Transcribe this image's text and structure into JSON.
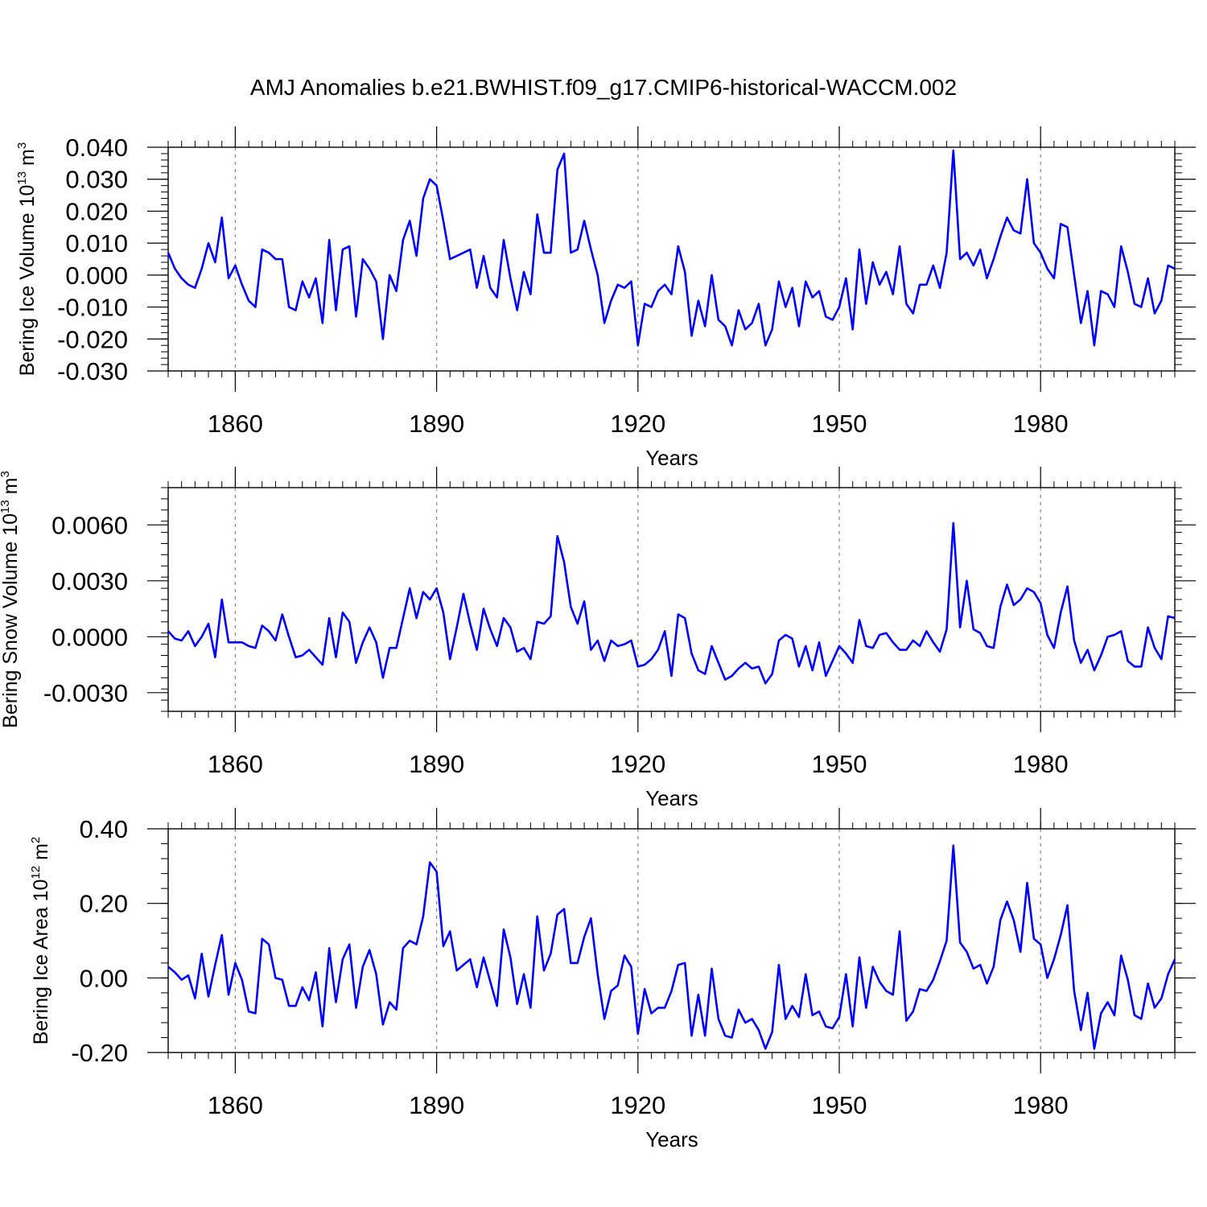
{
  "chart_data": [
    {
      "type": "line",
      "title": "AMJ Anomalies b.e21.BWHIST.f09_g17.CMIP6-historical-WACCM.002",
      "xlabel": "Years",
      "ylabel_main": "Bering Ice Volume 10",
      "ylabel_exp": "13",
      "ylabel_unit": " m",
      "ylabel_unit_exp": "3",
      "xlim": [
        1850,
        2000
      ],
      "ylim": [
        -0.03,
        0.04
      ],
      "xticks": [
        1860,
        1890,
        1920,
        1950,
        1980
      ],
      "xtick_labels": [
        "1860",
        "1890",
        "1920",
        "1950",
        "1980"
      ],
      "yticks": [
        -0.03,
        -0.02,
        -0.01,
        0.0,
        0.01,
        0.02,
        0.03,
        0.04
      ],
      "ytick_labels": [
        "-0.030",
        "-0.020",
        "-0.010",
        "0.000",
        "0.010",
        "0.020",
        "0.030",
        "0.040"
      ],
      "line_color": "#0000ff",
      "x_start": 1850,
      "values": [
        0.007,
        0.002,
        -0.001,
        -0.003,
        -0.004,
        0.002,
        0.01,
        0.004,
        0.018,
        -0.001,
        0.003,
        -0.003,
        -0.008,
        -0.01,
        0.008,
        0.007,
        0.005,
        0.005,
        -0.01,
        -0.011,
        -0.002,
        -0.007,
        -0.001,
        -0.015,
        0.011,
        -0.011,
        0.008,
        0.009,
        -0.013,
        0.005,
        0.002,
        -0.002,
        -0.02,
        0.0,
        -0.005,
        0.011,
        0.017,
        0.006,
        0.024,
        0.03,
        0.028,
        0.017,
        0.005,
        0.006,
        0.007,
        0.008,
        -0.004,
        0.006,
        -0.004,
        -0.007,
        0.011,
        -0.001,
        -0.011,
        0.001,
        -0.006,
        0.019,
        0.007,
        0.007,
        0.033,
        0.038,
        0.007,
        0.008,
        0.017,
        0.008,
        0.0,
        -0.015,
        -0.008,
        -0.003,
        -0.004,
        -0.002,
        -0.022,
        -0.009,
        -0.01,
        -0.005,
        -0.003,
        -0.006,
        0.009,
        0.001,
        -0.019,
        -0.008,
        -0.016,
        0.0,
        -0.014,
        -0.016,
        -0.022,
        -0.011,
        -0.017,
        -0.015,
        -0.009,
        -0.022,
        -0.017,
        -0.002,
        -0.01,
        -0.004,
        -0.016,
        -0.002,
        -0.007,
        -0.005,
        -0.013,
        -0.014,
        -0.01,
        -0.001,
        -0.017,
        0.008,
        -0.009,
        0.004,
        -0.003,
        0.001,
        -0.006,
        0.009,
        -0.009,
        -0.012,
        -0.003,
        -0.003,
        0.003,
        -0.004,
        0.007,
        0.039,
        0.005,
        0.007,
        0.003,
        0.008,
        -0.001,
        0.005,
        0.012,
        0.018,
        0.014,
        0.013,
        0.03,
        0.01,
        0.007,
        0.002,
        -0.001,
        0.016,
        0.015,
        0.0,
        -0.015,
        -0.005,
        -0.022,
        -0.005,
        -0.006,
        -0.01,
        0.009,
        0.001,
        -0.009,
        -0.01,
        -0.001,
        -0.012,
        -0.008,
        0.003,
        0.002
      ]
    },
    {
      "type": "line",
      "xlabel": "Years",
      "ylabel_main": "Bering Snow Volume 10",
      "ylabel_exp": "13",
      "ylabel_unit": " m",
      "ylabel_unit_exp": "3",
      "xlim": [
        1850,
        2000
      ],
      "ylim": [
        -0.004,
        0.008
      ],
      "xticks": [
        1860,
        1890,
        1920,
        1950,
        1980
      ],
      "xtick_labels": [
        "1860",
        "1890",
        "1920",
        "1950",
        "1980"
      ],
      "yticks": [
        -0.003,
        0.0,
        0.003,
        0.006
      ],
      "ytick_labels": [
        "-0.0030",
        "0.0000",
        "0.0030",
        "0.0060"
      ],
      "line_color": "#0000ff",
      "x_start": 1850,
      "values": [
        0.0003,
        -0.0001,
        -0.0002,
        0.0003,
        -0.0005,
        0.0,
        0.0007,
        -0.0011,
        0.002,
        -0.0003,
        -0.0003,
        -0.0003,
        -0.0005,
        -0.0006,
        0.0006,
        0.0003,
        -0.0002,
        0.0012,
        0.0,
        -0.0011,
        -0.001,
        -0.0007,
        -0.0011,
        -0.0015,
        0.001,
        -0.0011,
        0.0013,
        0.0008,
        -0.0014,
        -0.0003,
        0.0005,
        -0.0003,
        -0.0022,
        -0.0006,
        -0.0006,
        0.001,
        0.0026,
        0.001,
        0.0024,
        0.002,
        0.0026,
        0.0013,
        -0.0012,
        0.0005,
        0.0023,
        0.0007,
        -0.0007,
        0.0015,
        0.0004,
        -0.0005,
        0.001,
        0.0005,
        -0.0008,
        -0.0006,
        -0.0012,
        0.0008,
        0.0007,
        0.0011,
        0.0054,
        0.004,
        0.0016,
        0.0007,
        0.0019,
        -0.0007,
        -0.0002,
        -0.0013,
        -0.0002,
        -0.0005,
        -0.0004,
        -0.0002,
        -0.0016,
        -0.0015,
        -0.0012,
        -0.0007,
        0.0003,
        -0.0021,
        0.0012,
        0.001,
        -0.0009,
        -0.0018,
        -0.002,
        -0.0005,
        -0.0014,
        -0.0023,
        -0.0021,
        -0.0017,
        -0.0014,
        -0.0017,
        -0.0016,
        -0.0025,
        -0.002,
        -0.0002,
        0.0001,
        -0.0001,
        -0.0016,
        -0.0005,
        -0.0018,
        -0.0003,
        -0.0021,
        -0.0013,
        -0.0005,
        -0.0009,
        -0.0014,
        0.0009,
        -0.0005,
        -0.0006,
        0.0001,
        0.0002,
        -0.0003,
        -0.0007,
        -0.0007,
        -0.0002,
        -0.0005,
        0.0003,
        -0.0003,
        -0.0008,
        0.0004,
        0.0061,
        0.0005,
        0.003,
        0.0004,
        0.0002,
        -0.0005,
        -0.0006,
        0.0016,
        0.0028,
        0.0017,
        0.002,
        0.0026,
        0.0024,
        0.0018,
        0.0001,
        -0.0006,
        0.0013,
        0.0027,
        -0.0002,
        -0.0014,
        -0.0007,
        -0.0018,
        -0.001,
        0.0,
        0.0001,
        0.0003,
        -0.0013,
        -0.0016,
        -0.0016,
        0.0005,
        -0.0006,
        -0.0012,
        0.0011,
        0.001
      ]
    },
    {
      "type": "line",
      "xlabel": "Years",
      "ylabel_main": "Bering Ice Area 10",
      "ylabel_exp": "12",
      "ylabel_unit": " m",
      "ylabel_unit_exp": "2",
      "xlim": [
        1850,
        2000
      ],
      "ylim": [
        -0.2,
        0.4
      ],
      "xticks": [
        1860,
        1890,
        1920,
        1950,
        1980
      ],
      "xtick_labels": [
        "1860",
        "1890",
        "1920",
        "1950",
        "1980"
      ],
      "yticks": [
        -0.2,
        0.0,
        0.2,
        0.4
      ],
      "ytick_labels": [
        "-0.20",
        "0.00",
        "0.20",
        "0.40"
      ],
      "line_color": "#0000ff",
      "x_start": 1850,
      "values": [
        0.03,
        0.015,
        -0.005,
        0.007,
        -0.055,
        0.065,
        -0.05,
        0.035,
        0.115,
        -0.045,
        0.04,
        -0.005,
        -0.09,
        -0.095,
        0.105,
        0.09,
        0.0,
        -0.005,
        -0.075,
        -0.075,
        -0.025,
        -0.06,
        0.015,
        -0.13,
        0.08,
        -0.065,
        0.05,
        0.09,
        -0.08,
        0.03,
        0.075,
        0.01,
        -0.125,
        -0.065,
        -0.085,
        0.08,
        0.1,
        0.09,
        0.165,
        0.31,
        0.285,
        0.085,
        0.125,
        0.02,
        0.035,
        0.05,
        -0.025,
        0.055,
        -0.01,
        -0.075,
        0.13,
        0.055,
        -0.07,
        0.01,
        -0.08,
        0.165,
        0.02,
        0.065,
        0.17,
        0.185,
        0.04,
        0.04,
        0.11,
        0.16,
        0.01,
        -0.11,
        -0.035,
        -0.02,
        0.06,
        0.03,
        -0.15,
        -0.03,
        -0.095,
        -0.08,
        -0.08,
        -0.035,
        0.035,
        0.04,
        -0.155,
        -0.045,
        -0.155,
        0.025,
        -0.11,
        -0.155,
        -0.16,
        -0.085,
        -0.12,
        -0.11,
        -0.14,
        -0.19,
        -0.145,
        0.035,
        -0.11,
        -0.075,
        -0.105,
        0.01,
        -0.1,
        -0.09,
        -0.13,
        -0.135,
        -0.105,
        0.01,
        -0.13,
        0.055,
        -0.08,
        0.03,
        -0.01,
        -0.035,
        -0.045,
        0.125,
        -0.115,
        -0.09,
        -0.03,
        -0.035,
        -0.005,
        0.045,
        0.1,
        0.355,
        0.095,
        0.07,
        0.025,
        0.035,
        -0.015,
        0.03,
        0.155,
        0.205,
        0.155,
        0.07,
        0.255,
        0.105,
        0.09,
        0.0,
        0.05,
        0.115,
        0.195,
        -0.035,
        -0.14,
        -0.04,
        -0.19,
        -0.095,
        -0.065,
        -0.1,
        0.06,
        -0.005,
        -0.1,
        -0.11,
        -0.015,
        -0.08,
        -0.055,
        0.01,
        0.05
      ]
    }
  ]
}
